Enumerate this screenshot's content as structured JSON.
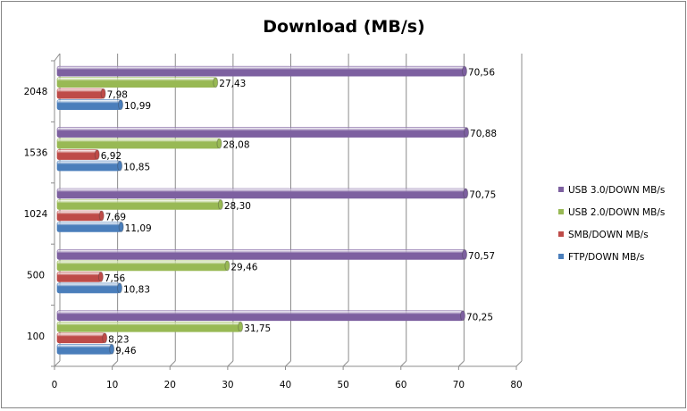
{
  "chart_data": {
    "type": "bar",
    "orientation": "horizontal",
    "style": "3d-cylinder",
    "title": "Download (MB/s)",
    "categories": [
      "100",
      "500",
      "1024",
      "1536",
      "2048"
    ],
    "series": [
      {
        "name": "FTP/DOWN MB/s",
        "color": "#4a7ebb",
        "values": [
          9.46,
          10.83,
          11.09,
          10.85,
          10.99
        ],
        "labels": [
          "9,46",
          "10,83",
          "11,09",
          "10,85",
          "10,99"
        ]
      },
      {
        "name": "SMB/DOWN MB/s",
        "color": "#be4b48",
        "values": [
          8.23,
          7.56,
          7.69,
          6.92,
          7.98
        ],
        "labels": [
          "8,23",
          "7,56",
          "7,69",
          "6,92",
          "7,98"
        ]
      },
      {
        "name": "USB 2.0/DOWN MB/s",
        "color": "#98b954",
        "values": [
          31.75,
          29.46,
          28.3,
          28.08,
          27.43
        ],
        "labels": [
          "31,75",
          "29,46",
          "28,30",
          "28,08",
          "27,43"
        ]
      },
      {
        "name": "USB 3.0/DOWN MB/s",
        "color": "#7d60a0",
        "values": [
          70.25,
          70.57,
          70.75,
          70.88,
          70.56
        ],
        "labels": [
          "70,25",
          "70,57",
          "70,75",
          "70,88",
          "70,56"
        ]
      }
    ],
    "xlim": [
      0,
      80
    ],
    "x_ticks": [
      "0",
      "10",
      "20",
      "30",
      "40",
      "50",
      "60",
      "70",
      "80"
    ],
    "grid": true,
    "legend": "right"
  }
}
